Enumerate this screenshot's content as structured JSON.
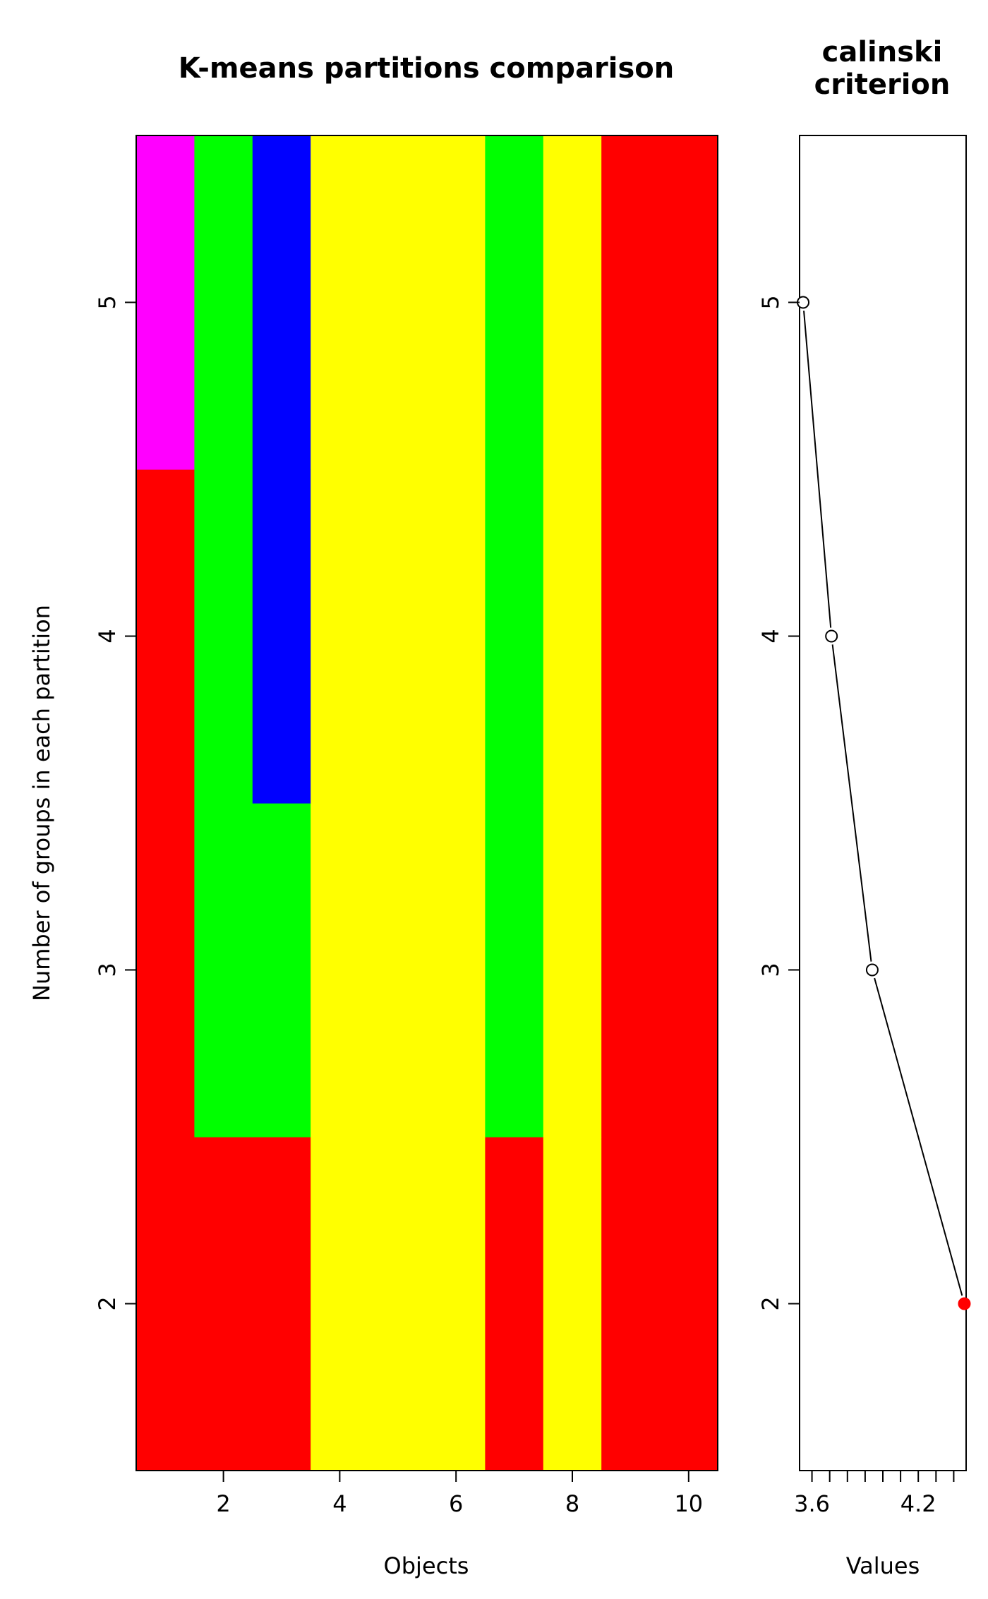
{
  "chart_data": [
    {
      "type": "heatmap",
      "title": "K-means partitions comparison",
      "xlabel": "Objects",
      "ylabel": "Number of groups in each partition",
      "x_ticks": [
        2,
        4,
        6,
        8,
        10
      ],
      "y_ticks": [
        2,
        3,
        4,
        5
      ],
      "xlim": [
        0.5,
        10.5
      ],
      "ylim": [
        1.5,
        5.5
      ],
      "objects": [
        1,
        2,
        3,
        4,
        5,
        6,
        7,
        8,
        9,
        10
      ],
      "partitions": [
        {
          "groups": 2,
          "colors": [
            "#ff0000",
            "#ff0000",
            "#ff0000",
            "#ffff00",
            "#ffff00",
            "#ffff00",
            "#ff0000",
            "#ffff00",
            "#ff0000",
            "#ff0000"
          ]
        },
        {
          "groups": 3,
          "colors": [
            "#ff0000",
            "#00ff00",
            "#00ff00",
            "#ffff00",
            "#ffff00",
            "#ffff00",
            "#00ff00",
            "#ffff00",
            "#ff0000",
            "#ff0000"
          ]
        },
        {
          "groups": 4,
          "colors": [
            "#ff0000",
            "#00ff00",
            "#0000ff",
            "#ffff00",
            "#ffff00",
            "#ffff00",
            "#00ff00",
            "#ffff00",
            "#ff0000",
            "#ff0000"
          ]
        },
        {
          "groups": 5,
          "colors": [
            "#ff00ff",
            "#00ff00",
            "#0000ff",
            "#ffff00",
            "#ffff00",
            "#ffff00",
            "#00ff00",
            "#ffff00",
            "#ff0000",
            "#ff0000"
          ]
        }
      ]
    },
    {
      "type": "line",
      "title": [
        "calinski",
        "criterion"
      ],
      "xlabel": "Values",
      "ylabel": "",
      "x_ticks": [
        3.6,
        4.2
      ],
      "x_minor_ticks": [
        3.6,
        3.7,
        3.8,
        3.9,
        4.0,
        4.1,
        4.2,
        4.3,
        4.4
      ],
      "y_ticks": [
        2,
        3,
        4,
        5
      ],
      "xlim": [
        3.53,
        4.47
      ],
      "ylim": [
        1.5,
        5.5
      ],
      "points": [
        {
          "groups": 2,
          "value": 4.46,
          "highlight": true
        },
        {
          "groups": 3,
          "value": 3.94,
          "highlight": false
        },
        {
          "groups": 4,
          "value": 3.71,
          "highlight": false
        },
        {
          "groups": 5,
          "value": 3.55,
          "highlight": false
        }
      ],
      "highlight_color": "#ff0000",
      "line_color": "#000000"
    }
  ]
}
